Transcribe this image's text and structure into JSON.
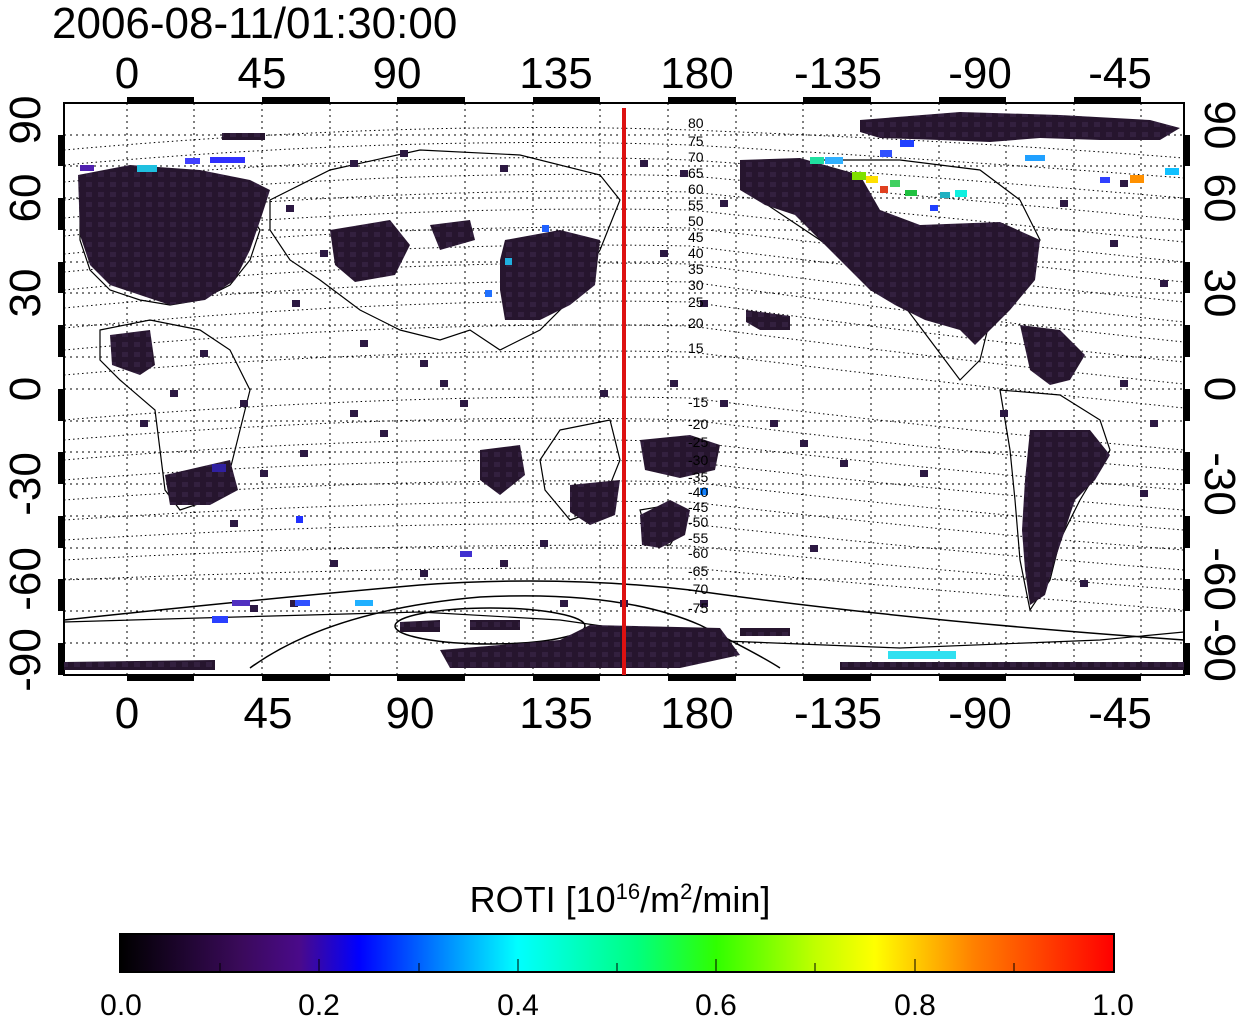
{
  "title": "2006-08-11/01:30:00",
  "map": {
    "lon_ticks": [
      "0",
      "45",
      "90",
      "135",
      "180",
      "-135",
      "-90",
      "-45"
    ],
    "lat_ticks": [
      "90",
      "60",
      "30",
      "0",
      "-30",
      "-60",
      "-90"
    ],
    "contour_labels_north": [
      "80",
      "75",
      "70",
      "65",
      "60",
      "55",
      "50",
      "45",
      "40",
      "35",
      "30",
      "25",
      "20",
      "15"
    ],
    "contour_labels_south": [
      "-15",
      "-20",
      "-25",
      "-30",
      "-35",
      "-40",
      "-45",
      "-50",
      "-55",
      "-60",
      "-65",
      "-70",
      "-75"
    ],
    "red_line_longitude": 157
  },
  "colorbar": {
    "label_prefix": "ROTI  [10",
    "label_exp1": "16",
    "label_mid": "/m",
    "label_exp2": "2",
    "label_suffix": "/min]",
    "ticks": [
      "0.0",
      "0.2",
      "0.4",
      "0.6",
      "0.8",
      "1.0"
    ],
    "min": 0.0,
    "max": 1.0,
    "colors": [
      "#000000",
      "#4a0a8a",
      "#0000ff",
      "#00ffff",
      "#30ff00",
      "#ffff00",
      "#ff8000",
      "#ff0000"
    ]
  }
}
